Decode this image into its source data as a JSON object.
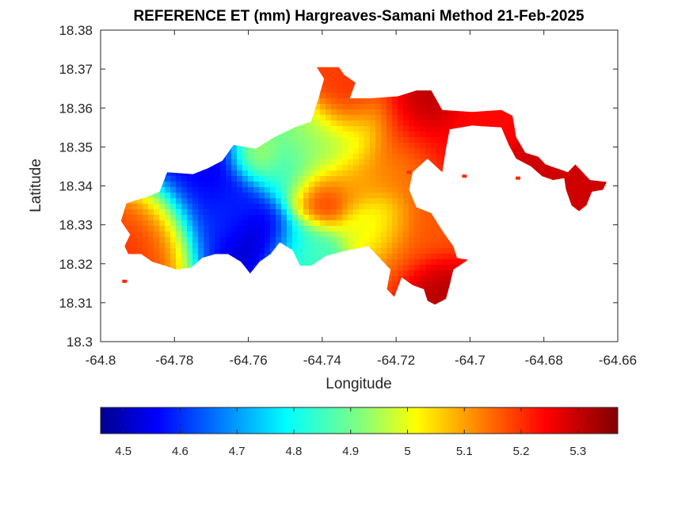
{
  "chart_data": {
    "type": "heatmap",
    "title": "REFERENCE ET (mm) Hargreaves-Samani Method  21-Feb-2025",
    "xlabel": "Longitude",
    "ylabel": "Latitude",
    "xlim": [
      -64.8,
      -64.66
    ],
    "ylim": [
      18.3,
      18.38
    ],
    "x_ticks": [
      -64.8,
      -64.78,
      -64.76,
      -64.74,
      -64.72,
      -64.7,
      -64.68,
      -64.66
    ],
    "x_tick_labels": [
      "-64.8",
      "-64.78",
      "-64.76",
      "-64.74",
      "-64.72",
      "-64.7",
      "-64.68",
      "-64.66"
    ],
    "y_ticks": [
      18.3,
      18.31,
      18.32,
      18.33,
      18.34,
      18.35,
      18.36,
      18.37,
      18.38
    ],
    "y_tick_labels": [
      "18.3",
      "18.31",
      "18.32",
      "18.33",
      "18.34",
      "18.35",
      "18.36",
      "18.37",
      "18.38"
    ],
    "colorbar": {
      "orientation": "horizontal",
      "colormap": "jet",
      "range": [
        4.46,
        5.37
      ],
      "ticks": [
        4.5,
        4.6,
        4.7,
        4.8,
        4.9,
        5.0,
        5.1,
        5.2,
        5.3
      ],
      "tick_labels": [
        "4.5",
        "4.6",
        "4.7",
        "4.8",
        "4.9",
        "5",
        "5.1",
        "5.2",
        "5.3"
      ]
    },
    "island_outline": [
      [
        -64.793,
        18.3355
      ],
      [
        -64.788,
        18.337
      ],
      [
        -64.784,
        18.3385
      ],
      [
        -64.782,
        18.3435
      ],
      [
        -64.775,
        18.343
      ],
      [
        -64.771,
        18.3445
      ],
      [
        -64.767,
        18.3465
      ],
      [
        -64.764,
        18.3505
      ],
      [
        -64.758,
        18.3495
      ],
      [
        -64.753,
        18.3525
      ],
      [
        -64.7475,
        18.355
      ],
      [
        -64.743,
        18.3565
      ],
      [
        -64.741,
        18.3625
      ],
      [
        -64.7395,
        18.3675
      ],
      [
        -64.7415,
        18.3705
      ],
      [
        -64.7355,
        18.3705
      ],
      [
        -64.734,
        18.3685
      ],
      [
        -64.731,
        18.3665
      ],
      [
        -64.7325,
        18.3625
      ],
      [
        -64.727,
        18.3625
      ],
      [
        -64.7195,
        18.363
      ],
      [
        -64.7145,
        18.3645
      ],
      [
        -64.7105,
        18.3645
      ],
      [
        -64.7075,
        18.3595
      ],
      [
        -64.6995,
        18.359
      ],
      [
        -64.6915,
        18.3595
      ],
      [
        -64.6885,
        18.358
      ],
      [
        -64.6875,
        18.3525
      ],
      [
        -64.685,
        18.3485
      ],
      [
        -64.6815,
        18.3475
      ],
      [
        -64.6795,
        18.3455
      ],
      [
        -64.6765,
        18.3445
      ],
      [
        -64.6735,
        18.3435
      ],
      [
        -64.6715,
        18.3455
      ],
      [
        -64.6695,
        18.3435
      ],
      [
        -64.6675,
        18.3415
      ],
      [
        -64.663,
        18.341
      ],
      [
        -64.664,
        18.339
      ],
      [
        -64.667,
        18.3385
      ],
      [
        -64.6685,
        18.335
      ],
      [
        -64.6705,
        18.3335
      ],
      [
        -64.6725,
        18.335
      ],
      [
        -64.674,
        18.339
      ],
      [
        -64.6745,
        18.342
      ],
      [
        -64.6775,
        18.3415
      ],
      [
        -64.6805,
        18.3425
      ],
      [
        -64.6835,
        18.345
      ],
      [
        -64.6875,
        18.347
      ],
      [
        -64.6895,
        18.3505
      ],
      [
        -64.6915,
        18.355
      ],
      [
        -64.6995,
        18.3555
      ],
      [
        -64.7055,
        18.3545
      ],
      [
        -64.7065,
        18.3495
      ],
      [
        -64.7075,
        18.3435
      ],
      [
        -64.7115,
        18.347
      ],
      [
        -64.7155,
        18.3435
      ],
      [
        -64.7165,
        18.339
      ],
      [
        -64.7145,
        18.3345
      ],
      [
        -64.7105,
        18.333
      ],
      [
        -64.7075,
        18.3285
      ],
      [
        -64.7045,
        18.3245
      ],
      [
        -64.7035,
        18.3215
      ],
      [
        -64.7005,
        18.321
      ],
      [
        -64.7045,
        18.3185
      ],
      [
        -64.7055,
        18.3145
      ],
      [
        -64.7065,
        18.311
      ],
      [
        -64.7095,
        18.3095
      ],
      [
        -64.7115,
        18.3105
      ],
      [
        -64.7125,
        18.3135
      ],
      [
        -64.7155,
        18.3145
      ],
      [
        -64.7185,
        18.3165
      ],
      [
        -64.7205,
        18.3115
      ],
      [
        -64.7225,
        18.3135
      ],
      [
        -64.7215,
        18.3185
      ],
      [
        -64.7245,
        18.3215
      ],
      [
        -64.7275,
        18.3245
      ],
      [
        -64.733,
        18.3235
      ],
      [
        -64.739,
        18.322
      ],
      [
        -64.743,
        18.3195
      ],
      [
        -64.746,
        18.3195
      ],
      [
        -64.748,
        18.3235
      ],
      [
        -64.7515,
        18.3255
      ],
      [
        -64.754,
        18.3225
      ],
      [
        -64.757,
        18.3205
      ],
      [
        -64.7595,
        18.3175
      ],
      [
        -64.762,
        18.3205
      ],
      [
        -64.7655,
        18.3225
      ],
      [
        -64.769,
        18.3225
      ],
      [
        -64.7725,
        18.3215
      ],
      [
        -64.7755,
        18.319
      ],
      [
        -64.7795,
        18.3185
      ],
      [
        -64.7825,
        18.3195
      ],
      [
        -64.786,
        18.3205
      ],
      [
        -64.789,
        18.3225
      ],
      [
        -64.7925,
        18.3225
      ],
      [
        -64.7935,
        18.3245
      ],
      [
        -64.792,
        18.3275
      ],
      [
        -64.7945,
        18.331
      ]
    ],
    "offshore_points": [
      [
        -64.7935,
        18.3155
      ],
      [
        -64.7165,
        18.3435
      ],
      [
        -64.7015,
        18.3425
      ],
      [
        -64.687,
        18.342
      ]
    ],
    "value_centers": [
      {
        "lon": -64.758,
        "lat": 18.3255,
        "value": 4.47,
        "radius": 0.0055
      },
      {
        "lon": -64.771,
        "lat": 18.3385,
        "value": 4.56,
        "radius": 0.009
      },
      {
        "lon": -64.7645,
        "lat": 18.3315,
        "value": 4.64,
        "radius": 0.006
      },
      {
        "lon": -64.7495,
        "lat": 18.3435,
        "value": 4.84,
        "radius": 0.005
      },
      {
        "lon": -64.7465,
        "lat": 18.3215,
        "value": 4.86,
        "radius": 0.0065
      },
      {
        "lon": -64.742,
        "lat": 18.348,
        "value": 4.94,
        "radius": 0.006
      },
      {
        "lon": -64.7315,
        "lat": 18.3545,
        "value": 4.96,
        "radius": 0.006
      },
      {
        "lon": -64.7255,
        "lat": 18.3295,
        "value": 4.99,
        "radius": 0.005
      },
      {
        "lon": -64.7575,
        "lat": 18.347,
        "value": 5.0,
        "radius": 0.004
      },
      {
        "lon": -64.7405,
        "lat": 18.3375,
        "value": 5.24,
        "radius": 0.0045
      },
      {
        "lon": -64.7325,
        "lat": 18.3605,
        "value": 5.28,
        "radius": 0.0045
      },
      {
        "lon": -64.7865,
        "lat": 18.3285,
        "value": 5.22,
        "radius": 0.0065
      },
      {
        "lon": -64.7305,
        "lat": 18.3415,
        "value": 5.12,
        "radius": 0.005
      },
      {
        "lon": -64.7165,
        "lat": 18.3545,
        "value": 5.25,
        "radius": 0.008
      },
      {
        "lon": -64.7115,
        "lat": 18.3615,
        "value": 5.34,
        "radius": 0.0045
      },
      {
        "lon": -64.7155,
        "lat": 18.3255,
        "value": 5.18,
        "radius": 0.007
      },
      {
        "lon": -64.7095,
        "lat": 18.3145,
        "value": 5.33,
        "radius": 0.0045
      },
      {
        "lon": -64.6965,
        "lat": 18.3575,
        "value": 5.25,
        "radius": 0.006
      },
      {
        "lon": -64.6805,
        "lat": 18.3455,
        "value": 5.3,
        "radius": 0.005
      },
      {
        "lon": -64.6695,
        "lat": 18.339,
        "value": 5.3,
        "radius": 0.0045
      },
      {
        "lon": -64.7375,
        "lat": 18.3685,
        "value": 5.2,
        "radius": 0.003
      },
      {
        "lon": -64.7195,
        "lat": 18.3455,
        "value": 5.12,
        "radius": 0.005
      }
    ]
  }
}
